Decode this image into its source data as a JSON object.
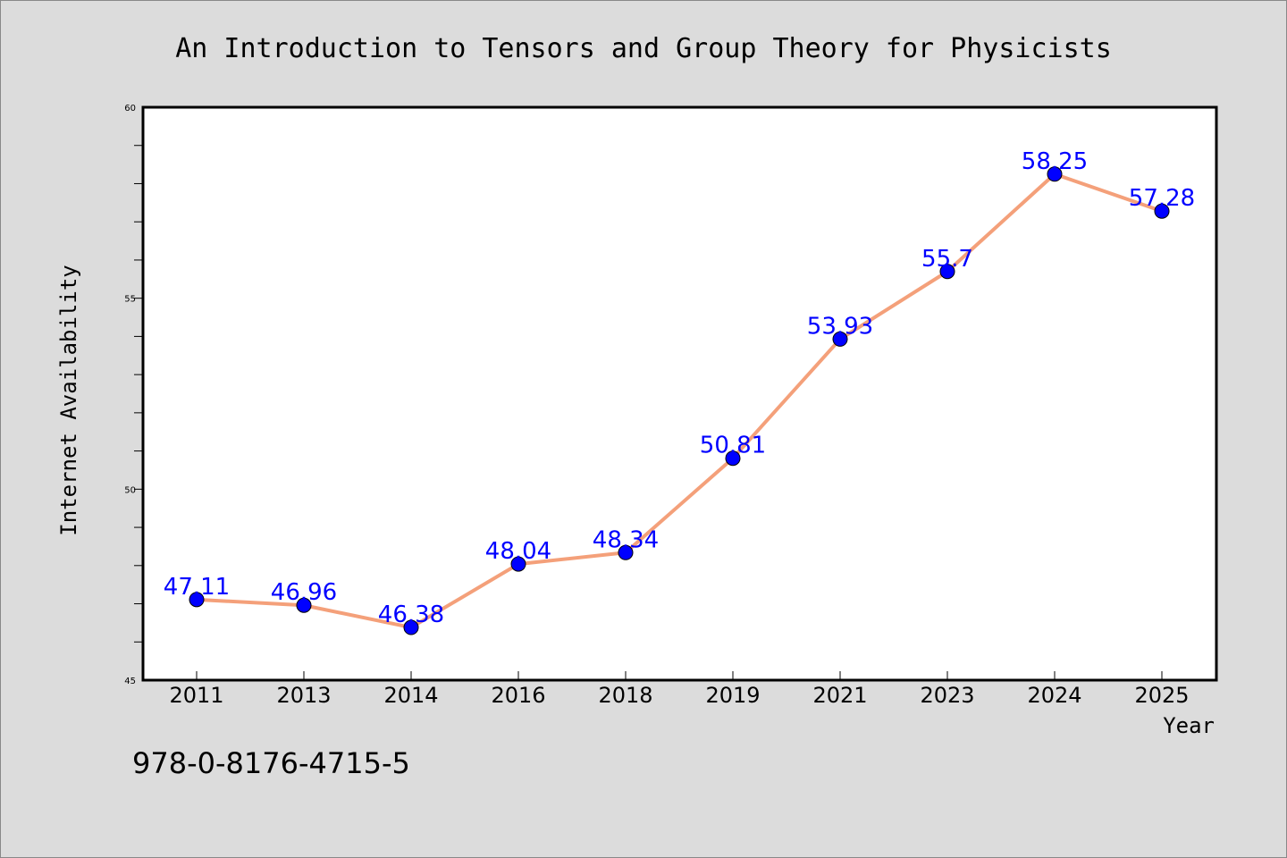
{
  "chart_data": {
    "type": "line",
    "title": "An Introduction to Tensors and Group Theory for Physicists",
    "xlabel": "Year",
    "ylabel": "Internet Availability",
    "categories": [
      "2011",
      "2013",
      "2014",
      "2016",
      "2018",
      "2019",
      "2021",
      "2023",
      "2024",
      "2025"
    ],
    "series": [
      {
        "values": [
          47.11,
          46.96,
          46.38,
          48.04,
          48.34,
          50.81,
          53.93,
          55.7,
          58.25,
          57.28
        ],
        "data_labels": [
          "47.11",
          "46.96",
          "46.38",
          "48.04",
          "48.34",
          "50.81",
          "53.93",
          "55.7",
          "58.25",
          "57.28"
        ]
      }
    ],
    "ylim": [
      45,
      60
    ],
    "yticks": [
      "45",
      "50",
      "55",
      "60"
    ],
    "grid": false,
    "legend": "none",
    "colors": {
      "line": "#f4a07a",
      "marker": "#0000ff",
      "data_label": "#0000ff",
      "background": "#dcdcdc",
      "plot_area": "#ffffff"
    }
  },
  "footer": {
    "isbn": "978-0-8176-4715-5"
  }
}
